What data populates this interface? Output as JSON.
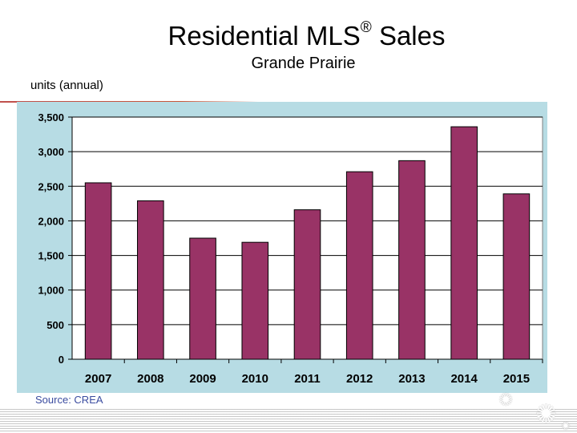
{
  "chart_data": {
    "type": "bar",
    "title": "Residential MLS",
    "title_mark": "®",
    "title_suffix": "Sales",
    "subtitle": "Grande Prairie",
    "ylabel": "units (annual)",
    "source": "Source: CREA",
    "categories": [
      "2007",
      "2008",
      "2009",
      "2010",
      "2011",
      "2012",
      "2013",
      "2014",
      "2015"
    ],
    "values": [
      2550,
      2290,
      1750,
      1690,
      2160,
      2710,
      2870,
      3360,
      2390
    ],
    "ylim": [
      0,
      3500
    ],
    "yticks": [
      0,
      500,
      1000,
      1500,
      2000,
      2500,
      3000,
      3500
    ],
    "ytick_labels": [
      "0",
      "500",
      "1,000",
      "1,500",
      "2,000",
      "2,500",
      "3,000",
      "3,500"
    ],
    "grid": true,
    "legend": "none",
    "colors": {
      "bar": "#993366",
      "plot_background": "#b7dce4",
      "source_text": "#3b4ca0"
    }
  },
  "decor": {
    "leaf_icon": "maple-leaf-icon"
  }
}
